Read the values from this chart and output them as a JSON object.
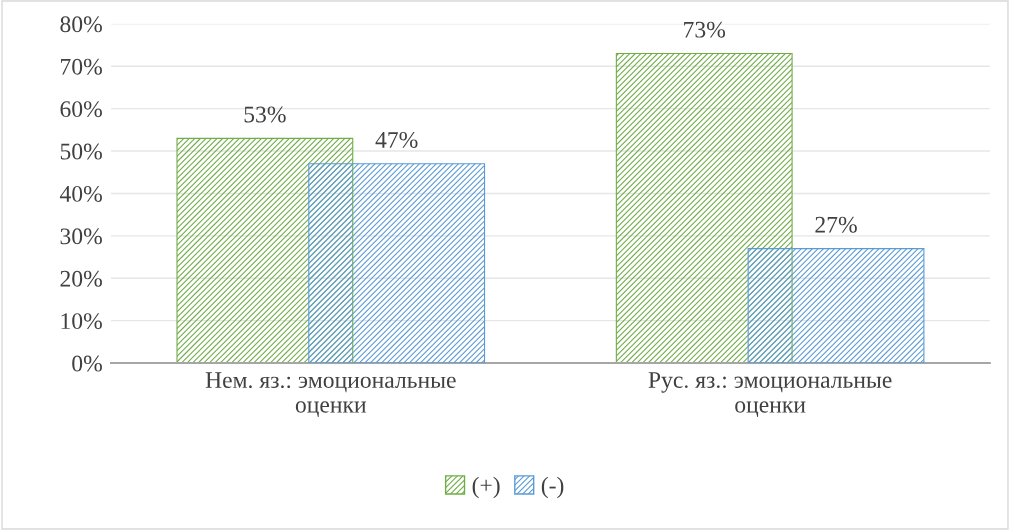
{
  "chart_data": {
    "type": "bar",
    "categories": [
      "Нем. яз.: эмоциональные оценки",
      "Рус. яз.: эмоциональные оценки"
    ],
    "series": [
      {
        "name": "(+)",
        "color": "#70ad47",
        "values": [
          53,
          73
        ],
        "value_labels": [
          "53%",
          "73%"
        ]
      },
      {
        "name": "(-)",
        "color": "#5b9bd5",
        "values": [
          47,
          27
        ],
        "value_labels": [
          "47%",
          "27%"
        ]
      }
    ],
    "ylim": [
      0,
      80
    ],
    "yticks": [
      {
        "value": 0,
        "label": "0%"
      },
      {
        "value": 10,
        "label": "10%"
      },
      {
        "value": 20,
        "label": "20%"
      },
      {
        "value": 30,
        "label": "30%"
      },
      {
        "value": 40,
        "label": "40%"
      },
      {
        "value": 50,
        "label": "50%"
      },
      {
        "value": 60,
        "label": "60%"
      },
      {
        "value": 70,
        "label": "70%"
      },
      {
        "value": 80,
        "label": "80%"
      }
    ],
    "grid": "y",
    "legend": "bottom"
  }
}
